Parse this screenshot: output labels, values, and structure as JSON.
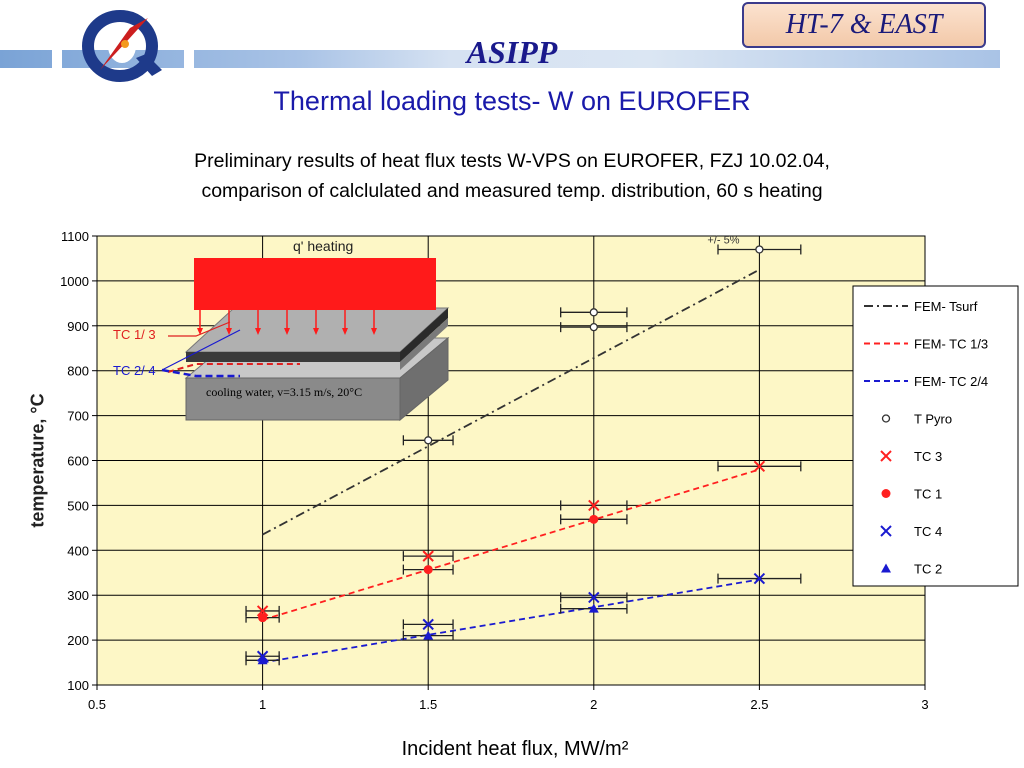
{
  "header": {
    "badge": "HT-7 & EAST",
    "org": "ASIPP",
    "title": "Thermal loading tests- W on EUROFER"
  },
  "subtitle": {
    "line1": "Preliminary results of heat flux tests W-VPS on EUROFER, FZJ 10.02.04,",
    "line2": "comparison of calclulated and measured temp. distribution, 60 s heating"
  },
  "colors": {
    "plot_bg": "#fdf7c6",
    "grid": "#000000",
    "red": "#ff2020",
    "blue": "#1a1ad0",
    "dark": "#333333",
    "heater": "#ff1a1a"
  },
  "inset": {
    "heating_label": "q' heating",
    "tc13_label": "TC 1/ 3",
    "tc24_label": "TC 2/ 4",
    "cooling_label": "cooling water, v=3.15 m/s, 20°C"
  },
  "chart_data": {
    "type": "scatter",
    "xlabel": "Incident heat flux, MW/m²",
    "ylabel": "temperature, °C",
    "xlim": [
      0.5,
      3
    ],
    "ylim": [
      100,
      1100
    ],
    "xticks": [
      "0.5",
      "1",
      "1.5",
      "2",
      "2.5",
      "3"
    ],
    "yticks": [
      "100",
      "200",
      "300",
      "400",
      "500",
      "600",
      "700",
      "800",
      "900",
      "1000",
      "1100"
    ],
    "grid": true,
    "legend_position": "right",
    "annotation": "+/- 5%",
    "series": [
      {
        "name": "FEM- Tsurf",
        "kind": "line",
        "style": "dash-dot",
        "color": "#333333",
        "x": [
          1,
          2.5
        ],
        "y": [
          435,
          1025
        ]
      },
      {
        "name": "FEM- TC 1/3",
        "kind": "line",
        "style": "dashed",
        "color": "#ff2020",
        "x": [
          1,
          2.5
        ],
        "y": [
          245,
          580
        ]
      },
      {
        "name": "FEM- TC 2/4",
        "kind": "line",
        "style": "dashed",
        "color": "#1a1ad0",
        "x": [
          1,
          2.5
        ],
        "y": [
          150,
          335
        ]
      },
      {
        "name": "T Pyro",
        "kind": "marker",
        "marker": "circle",
        "color": "#333333",
        "x": [
          1.5,
          2,
          2,
          2.5
        ],
        "y": [
          645,
          930,
          897,
          1070
        ]
      },
      {
        "name": "TC 3",
        "kind": "marker",
        "marker": "x",
        "color": "#ff2020",
        "x": [
          1,
          1.5,
          2,
          2.5
        ],
        "y": [
          265,
          387,
          500,
          587
        ]
      },
      {
        "name": "TC 1",
        "kind": "marker",
        "marker": "dot",
        "color": "#ff2020",
        "x": [
          1,
          1.5,
          2
        ],
        "y": [
          250,
          357,
          469
        ]
      },
      {
        "name": "TC 4",
        "kind": "marker",
        "marker": "x",
        "color": "#1a1ad0",
        "x": [
          1,
          1.5,
          2,
          2.5
        ],
        "y": [
          164,
          235,
          295,
          337
        ]
      },
      {
        "name": "TC 2",
        "kind": "marker",
        "marker": "triangle",
        "color": "#1a1ad0",
        "x": [
          1,
          1.5,
          2
        ],
        "y": [
          155,
          210,
          270
        ]
      }
    ]
  }
}
